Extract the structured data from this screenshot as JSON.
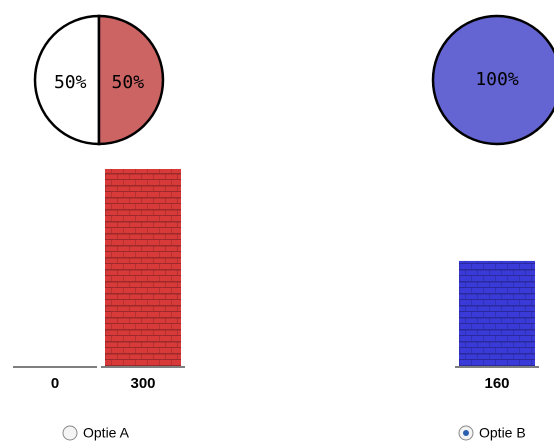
{
  "options": [
    {
      "pie": [
        {
          "value": 50,
          "label": "50%",
          "color": "#ffffff"
        },
        {
          "value": 50,
          "label": "50%",
          "color": "#cc6464"
        }
      ],
      "outcomes": [
        {
          "amount": 0,
          "color": "#d83a3a"
        },
        {
          "amount": 300,
          "color": "#d83a3a"
        }
      ],
      "radio": {
        "label": "Optie A",
        "selected": false
      }
    },
    {
      "pie": [
        {
          "value": 100,
          "label": "100%",
          "color": "#6464d2"
        }
      ],
      "outcomes": [
        {
          "amount": 160,
          "color": "#3a3ad8"
        }
      ],
      "radio": {
        "label": "Optie B",
        "selected": true
      }
    }
  ]
}
